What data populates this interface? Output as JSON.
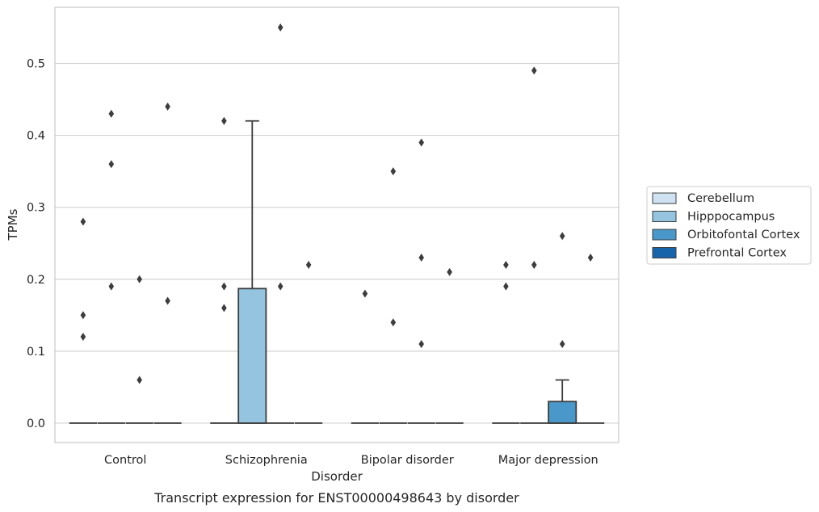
{
  "chart_data": {
    "type": "box",
    "caption": "Transcript expression for ENST00000498643 by disorder",
    "xlabel": "Disorder",
    "ylabel": "TPMs",
    "ylim": [
      -0.027,
      0.578
    ],
    "yticks": [
      0.0,
      0.1,
      0.2,
      0.3,
      0.4,
      0.5
    ],
    "ytick_labels": [
      "0.0",
      "0.1",
      "0.2",
      "0.3",
      "0.4",
      "0.5"
    ],
    "grid": "horizontal",
    "legend_position": "right",
    "categories": [
      "Control",
      "Schizophrenia",
      "Bipolar disorder",
      "Major depression"
    ],
    "series": [
      {
        "name": "Cerebellum",
        "color": "#d0e1f2",
        "boxes": [
          {
            "category": "Control",
            "q1": 0,
            "median": 0,
            "q3": 0,
            "whisker_low": 0,
            "whisker_high": 0,
            "outliers": [
              0.12,
              0.15,
              0.28
            ]
          },
          {
            "category": "Schizophrenia",
            "q1": 0,
            "median": 0,
            "q3": 0,
            "whisker_low": 0,
            "whisker_high": 0,
            "outliers": [
              0.16,
              0.19,
              0.42
            ]
          },
          {
            "category": "Bipolar disorder",
            "q1": 0,
            "median": 0,
            "q3": 0,
            "whisker_low": 0,
            "whisker_high": 0,
            "outliers": [
              0.18
            ]
          },
          {
            "category": "Major depression",
            "q1": 0,
            "median": 0,
            "q3": 0,
            "whisker_low": 0,
            "whisker_high": 0,
            "outliers": [
              0.19,
              0.22
            ]
          }
        ]
      },
      {
        "name": "Hipppocampus",
        "color": "#94c4df",
        "boxes": [
          {
            "category": "Control",
            "q1": 0,
            "median": 0,
            "q3": 0,
            "whisker_low": 0,
            "whisker_high": 0,
            "outliers": [
              0.19,
              0.36,
              0.43
            ]
          },
          {
            "category": "Schizophrenia",
            "q1": 0,
            "median": 0,
            "q3": 0.187,
            "whisker_low": 0,
            "whisker_high": 0.42,
            "outliers": []
          },
          {
            "category": "Bipolar disorder",
            "q1": 0,
            "median": 0,
            "q3": 0,
            "whisker_low": 0,
            "whisker_high": 0,
            "outliers": [
              0.14,
              0.35
            ]
          },
          {
            "category": "Major depression",
            "q1": 0,
            "median": 0,
            "q3": 0,
            "whisker_low": 0,
            "whisker_high": 0,
            "outliers": [
              0.22,
              0.49
            ]
          }
        ]
      },
      {
        "name": "Orbitofontal Cortex",
        "color": "#4a98c9",
        "boxes": [
          {
            "category": "Control",
            "q1": 0,
            "median": 0,
            "q3": 0,
            "whisker_low": 0,
            "whisker_high": 0,
            "outliers": [
              0.06,
              0.2
            ]
          },
          {
            "category": "Schizophrenia",
            "q1": 0,
            "median": 0,
            "q3": 0,
            "whisker_low": 0,
            "whisker_high": 0,
            "outliers": [
              0.19,
              0.55
            ]
          },
          {
            "category": "Bipolar disorder",
            "q1": 0,
            "median": 0,
            "q3": 0,
            "whisker_low": 0,
            "whisker_high": 0,
            "outliers": [
              0.11,
              0.23,
              0.39
            ]
          },
          {
            "category": "Major depression",
            "q1": 0,
            "median": 0,
            "q3": 0.03,
            "whisker_low": 0,
            "whisker_high": 0.06,
            "outliers": [
              0.11,
              0.26
            ]
          }
        ]
      },
      {
        "name": "Prefrontal Cortex",
        "color": "#1764ab",
        "boxes": [
          {
            "category": "Control",
            "q1": 0,
            "median": 0,
            "q3": 0,
            "whisker_low": 0,
            "whisker_high": 0,
            "outliers": [
              0.17,
              0.44
            ]
          },
          {
            "category": "Schizophrenia",
            "q1": 0,
            "median": 0,
            "q3": 0,
            "whisker_low": 0,
            "whisker_high": 0,
            "outliers": [
              0.22
            ]
          },
          {
            "category": "Bipolar disorder",
            "q1": 0,
            "median": 0,
            "q3": 0,
            "whisker_low": 0,
            "whisker_high": 0,
            "outliers": [
              0.21
            ]
          },
          {
            "category": "Major depression",
            "q1": 0,
            "median": 0,
            "q3": 0,
            "whisker_low": 0,
            "whisker_high": 0,
            "outliers": [
              0.23
            ]
          }
        ]
      }
    ]
  }
}
